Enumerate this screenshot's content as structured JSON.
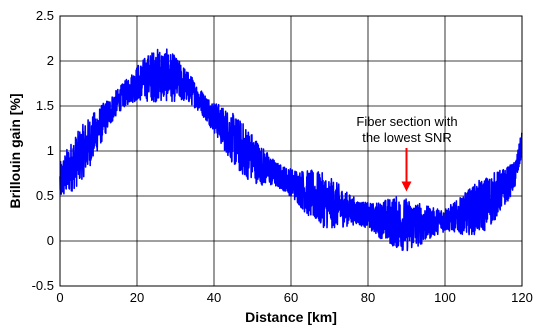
{
  "chart_data": {
    "type": "line",
    "xlabel": "Distance [km]",
    "ylabel": "Brillouin gain [%]",
    "xlim": [
      0,
      120
    ],
    "ylim": [
      -0.5,
      2.5
    ],
    "x_ticks": [
      "0",
      "20",
      "40",
      "60",
      "80",
      "100",
      "120"
    ],
    "y_ticks": [
      "-0.5",
      "0",
      "0.5",
      "1",
      "1.5",
      "2",
      "2.5"
    ],
    "x_tick_values": [
      0,
      20,
      40,
      60,
      80,
      100,
      120
    ],
    "y_tick_values": [
      -0.5,
      0,
      0.5,
      1,
      1.5,
      2,
      2.5
    ],
    "grid": true,
    "series": [
      {
        "color": "#0000ff",
        "x": [
          0,
          2,
          4,
          6,
          8,
          10,
          12,
          14,
          16,
          18,
          20,
          22,
          24,
          26,
          28,
          30,
          32,
          34,
          36,
          38,
          40,
          42,
          44,
          46,
          48,
          50,
          52,
          54,
          56,
          58,
          60,
          62,
          64,
          66,
          68,
          70,
          72,
          74,
          76,
          78,
          80,
          82,
          84,
          86,
          88,
          90,
          92,
          94,
          96,
          98,
          100,
          102,
          104,
          106,
          108,
          110,
          112,
          114,
          116,
          118,
          119,
          120
        ],
        "y": [
          0.65,
          0.78,
          0.88,
          1.0,
          1.12,
          1.25,
          1.38,
          1.5,
          1.6,
          1.68,
          1.75,
          1.8,
          1.83,
          1.85,
          1.84,
          1.8,
          1.75,
          1.68,
          1.58,
          1.48,
          1.38,
          1.28,
          1.18,
          1.08,
          1.0,
          0.93,
          0.85,
          0.8,
          0.74,
          0.7,
          0.65,
          0.6,
          0.54,
          0.5,
          0.46,
          0.42,
          0.4,
          0.36,
          0.34,
          0.31,
          0.28,
          0.25,
          0.23,
          0.22,
          0.2,
          0.18,
          0.18,
          0.19,
          0.2,
          0.22,
          0.24,
          0.26,
          0.28,
          0.32,
          0.36,
          0.4,
          0.46,
          0.54,
          0.62,
          0.72,
          0.88,
          1.1
        ]
      }
    ],
    "annotation": {
      "lines": [
        "Fiber section with",
        "the lowest SNR"
      ],
      "arrow_x": 90,
      "arrow_y": 0.55,
      "arrow_color": "#ff0000"
    }
  }
}
